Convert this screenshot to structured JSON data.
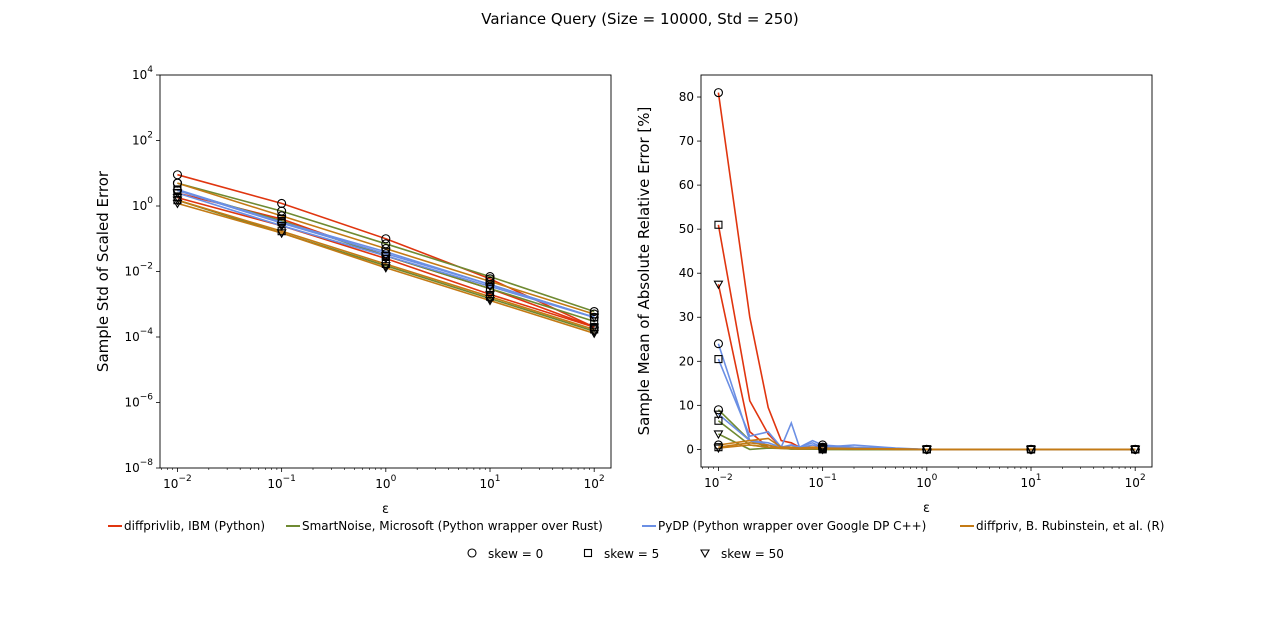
{
  "figure": {
    "title": "Variance Query (Size = 10000, Std = 250)"
  },
  "colors": {
    "diffprivlib": "#e0350f",
    "smartnoise": "#6f8a32",
    "pydp": "#6b8fe4",
    "diffpriv": "#c47a14"
  },
  "legend": {
    "libraries": [
      {
        "key": "diffprivlib",
        "label": "diffprivlib, IBM (Python)"
      },
      {
        "key": "smartnoise",
        "label": "SmartNoise, Microsoft (Python wrapper over Rust)"
      },
      {
        "key": "pydp",
        "label": "PyDP (Python wrapper over Google DP C++)"
      },
      {
        "key": "diffpriv",
        "label": "diffpriv, B. Rubinstein, et al. (R)"
      }
    ],
    "markers": [
      {
        "shape": "circle",
        "label": "skew = 0"
      },
      {
        "shape": "square",
        "label": "skew = 5"
      },
      {
        "shape": "triangle",
        "label": "skew = 50"
      }
    ]
  },
  "chart_data": [
    {
      "type": "line",
      "xlabel": "ε",
      "ylabel": "Sample Std of Scaled Error",
      "xscale": "log",
      "yscale": "log",
      "xlim": [
        0.0068,
        145
      ],
      "ylim": [
        1e-08,
        10000
      ],
      "xticks": [
        0.01,
        0.1,
        1,
        10,
        100
      ],
      "xtick_labels": [
        [
          "10",
          "−2"
        ],
        [
          "10",
          "−1"
        ],
        [
          "10",
          "0"
        ],
        [
          "10",
          "1"
        ],
        [
          "10",
          "2"
        ]
      ],
      "yticks": [
        1e-08,
        1e-06,
        0.0001,
        0.01,
        1,
        100,
        10000
      ],
      "ytick_labels": [
        [
          "10",
          "−8"
        ],
        [
          "10",
          "−6"
        ],
        [
          "10",
          "−4"
        ],
        [
          "10",
          "−2"
        ],
        [
          "10",
          "0"
        ],
        [
          "10",
          "2"
        ],
        [
          "10",
          "4"
        ]
      ],
      "x": [
        0.01,
        0.1,
        1,
        10,
        100
      ],
      "series": [
        {
          "library": "diffprivlib",
          "skew": 0,
          "values": [
            9,
            1.2,
            0.1,
            0.006,
            0.0002
          ]
        },
        {
          "library": "diffprivlib",
          "skew": 5,
          "values": [
            2.5,
            0.4,
            0.03,
            0.003,
            0.0002
          ]
        },
        {
          "library": "diffprivlib",
          "skew": 50,
          "values": [
            1.8,
            0.25,
            0.025,
            0.002,
            0.0002
          ]
        },
        {
          "library": "smartnoise",
          "skew": 0,
          "values": [
            5,
            0.7,
            0.07,
            0.007,
            0.0006
          ]
        },
        {
          "library": "smartnoise",
          "skew": 5,
          "values": [
            3,
            0.35,
            0.03,
            0.003,
            0.0003
          ]
        },
        {
          "library": "smartnoise",
          "skew": 50,
          "values": [
            1.5,
            0.15,
            0.015,
            0.0015,
            0.00015
          ]
        },
        {
          "library": "pydp",
          "skew": 0,
          "values": [
            3,
            0.3,
            0.035,
            0.004,
            0.0004
          ]
        },
        {
          "library": "pydp",
          "skew": 5,
          "values": [
            3.2,
            0.32,
            0.04,
            0.004,
            0.0004
          ]
        },
        {
          "library": "pydp",
          "skew": 50,
          "values": [
            2.5,
            0.25,
            0.03,
            0.0035,
            0.0004
          ]
        },
        {
          "library": "diffpriv",
          "skew": 0,
          "values": [
            5,
            0.5,
            0.05,
            0.005,
            0.0005
          ]
        },
        {
          "library": "diffpriv",
          "skew": 5,
          "values": [
            1.5,
            0.17,
            0.017,
            0.0017,
            0.00017
          ]
        },
        {
          "library": "diffpriv",
          "skew": 50,
          "values": [
            1.2,
            0.15,
            0.013,
            0.0013,
            0.00013
          ]
        }
      ]
    },
    {
      "type": "line",
      "xlabel": "ε",
      "ylabel": "Sample Mean of Absolute Relative Error [%]",
      "xscale": "log",
      "yscale": "linear",
      "xlim": [
        0.0068,
        145
      ],
      "ylim": [
        -4,
        85
      ],
      "xticks": [
        0.01,
        0.1,
        1,
        10,
        100
      ],
      "xtick_labels": [
        [
          "10",
          "−2"
        ],
        [
          "10",
          "−1"
        ],
        [
          "10",
          "0"
        ],
        [
          "10",
          "1"
        ],
        [
          "10",
          "2"
        ]
      ],
      "yticks": [
        0,
        10,
        20,
        30,
        40,
        50,
        60,
        70,
        80
      ],
      "ytick_labels": [
        [
          "0"
        ],
        [
          "10"
        ],
        [
          "20"
        ],
        [
          "30"
        ],
        [
          "40"
        ],
        [
          "50"
        ],
        [
          "60"
        ],
        [
          "70"
        ],
        [
          "80"
        ]
      ],
      "x": [
        0.01,
        0.02,
        0.03,
        0.04,
        0.05,
        0.06,
        0.08,
        0.1,
        0.2,
        0.5,
        1,
        10,
        100
      ],
      "series": [
        {
          "library": "diffprivlib",
          "skew": 0,
          "values": [
            81,
            30,
            9.5,
            2,
            1.5,
            0.5,
            0.5,
            0.5,
            0.3,
            0.1,
            0,
            0,
            0
          ]
        },
        {
          "library": "diffprivlib",
          "skew": 5,
          "values": [
            51,
            11,
            3.5,
            0.5,
            0.3,
            0.5,
            0.3,
            0.3,
            0.2,
            0.1,
            0,
            0,
            0
          ]
        },
        {
          "library": "diffprivlib",
          "skew": 50,
          "values": [
            37.5,
            4,
            0.5,
            0.3,
            0.2,
            0.1,
            0.1,
            0.1,
            0.1,
            0,
            0,
            0,
            0
          ]
        },
        {
          "library": "smartnoise",
          "skew": 0,
          "values": [
            9,
            2,
            0.5,
            0.3,
            0.1,
            0.1,
            0.1,
            0.1,
            0,
            0,
            0,
            0,
            0
          ]
        },
        {
          "library": "smartnoise",
          "skew": 5,
          "values": [
            6.5,
            1,
            0.5,
            0.3,
            0.1,
            0.1,
            0.1,
            0,
            0,
            0,
            0,
            0,
            0
          ]
        },
        {
          "library": "smartnoise",
          "skew": 50,
          "values": [
            3.5,
            0,
            0.3,
            0.2,
            0.1,
            0.1,
            0.1,
            0,
            0,
            0,
            0,
            0,
            0
          ]
        },
        {
          "library": "pydp",
          "skew": 0,
          "values": [
            24,
            2,
            1.5,
            0.5,
            6,
            0.5,
            2,
            1,
            0.5,
            0.2,
            0,
            0,
            0
          ]
        },
        {
          "library": "pydp",
          "skew": 5,
          "values": [
            20.5,
            3,
            4,
            0.5,
            1,
            0.5,
            1.5,
            0.5,
            1,
            0.3,
            0,
            0,
            0
          ]
        },
        {
          "library": "pydp",
          "skew": 50,
          "values": [
            8,
            2,
            1,
            0.3,
            1,
            0.3,
            1,
            0.5,
            0.3,
            0.1,
            0,
            0,
            0
          ]
        },
        {
          "library": "diffpriv",
          "skew": 0,
          "values": [
            1,
            2,
            2.5,
            0.5,
            0.5,
            0.3,
            0.5,
            0.3,
            0.2,
            0.1,
            0,
            0,
            0
          ]
        },
        {
          "library": "diffpriv",
          "skew": 5,
          "values": [
            0.5,
            1.5,
            1,
            0.3,
            0.3,
            0.2,
            0.3,
            0.2,
            0.1,
            0.1,
            0,
            0,
            0
          ]
        },
        {
          "library": "diffpriv",
          "skew": 50,
          "values": [
            0.3,
            1,
            0.5,
            0.2,
            0.2,
            0.1,
            0.2,
            0.1,
            0.1,
            0,
            0,
            0,
            0
          ]
        }
      ]
    }
  ]
}
